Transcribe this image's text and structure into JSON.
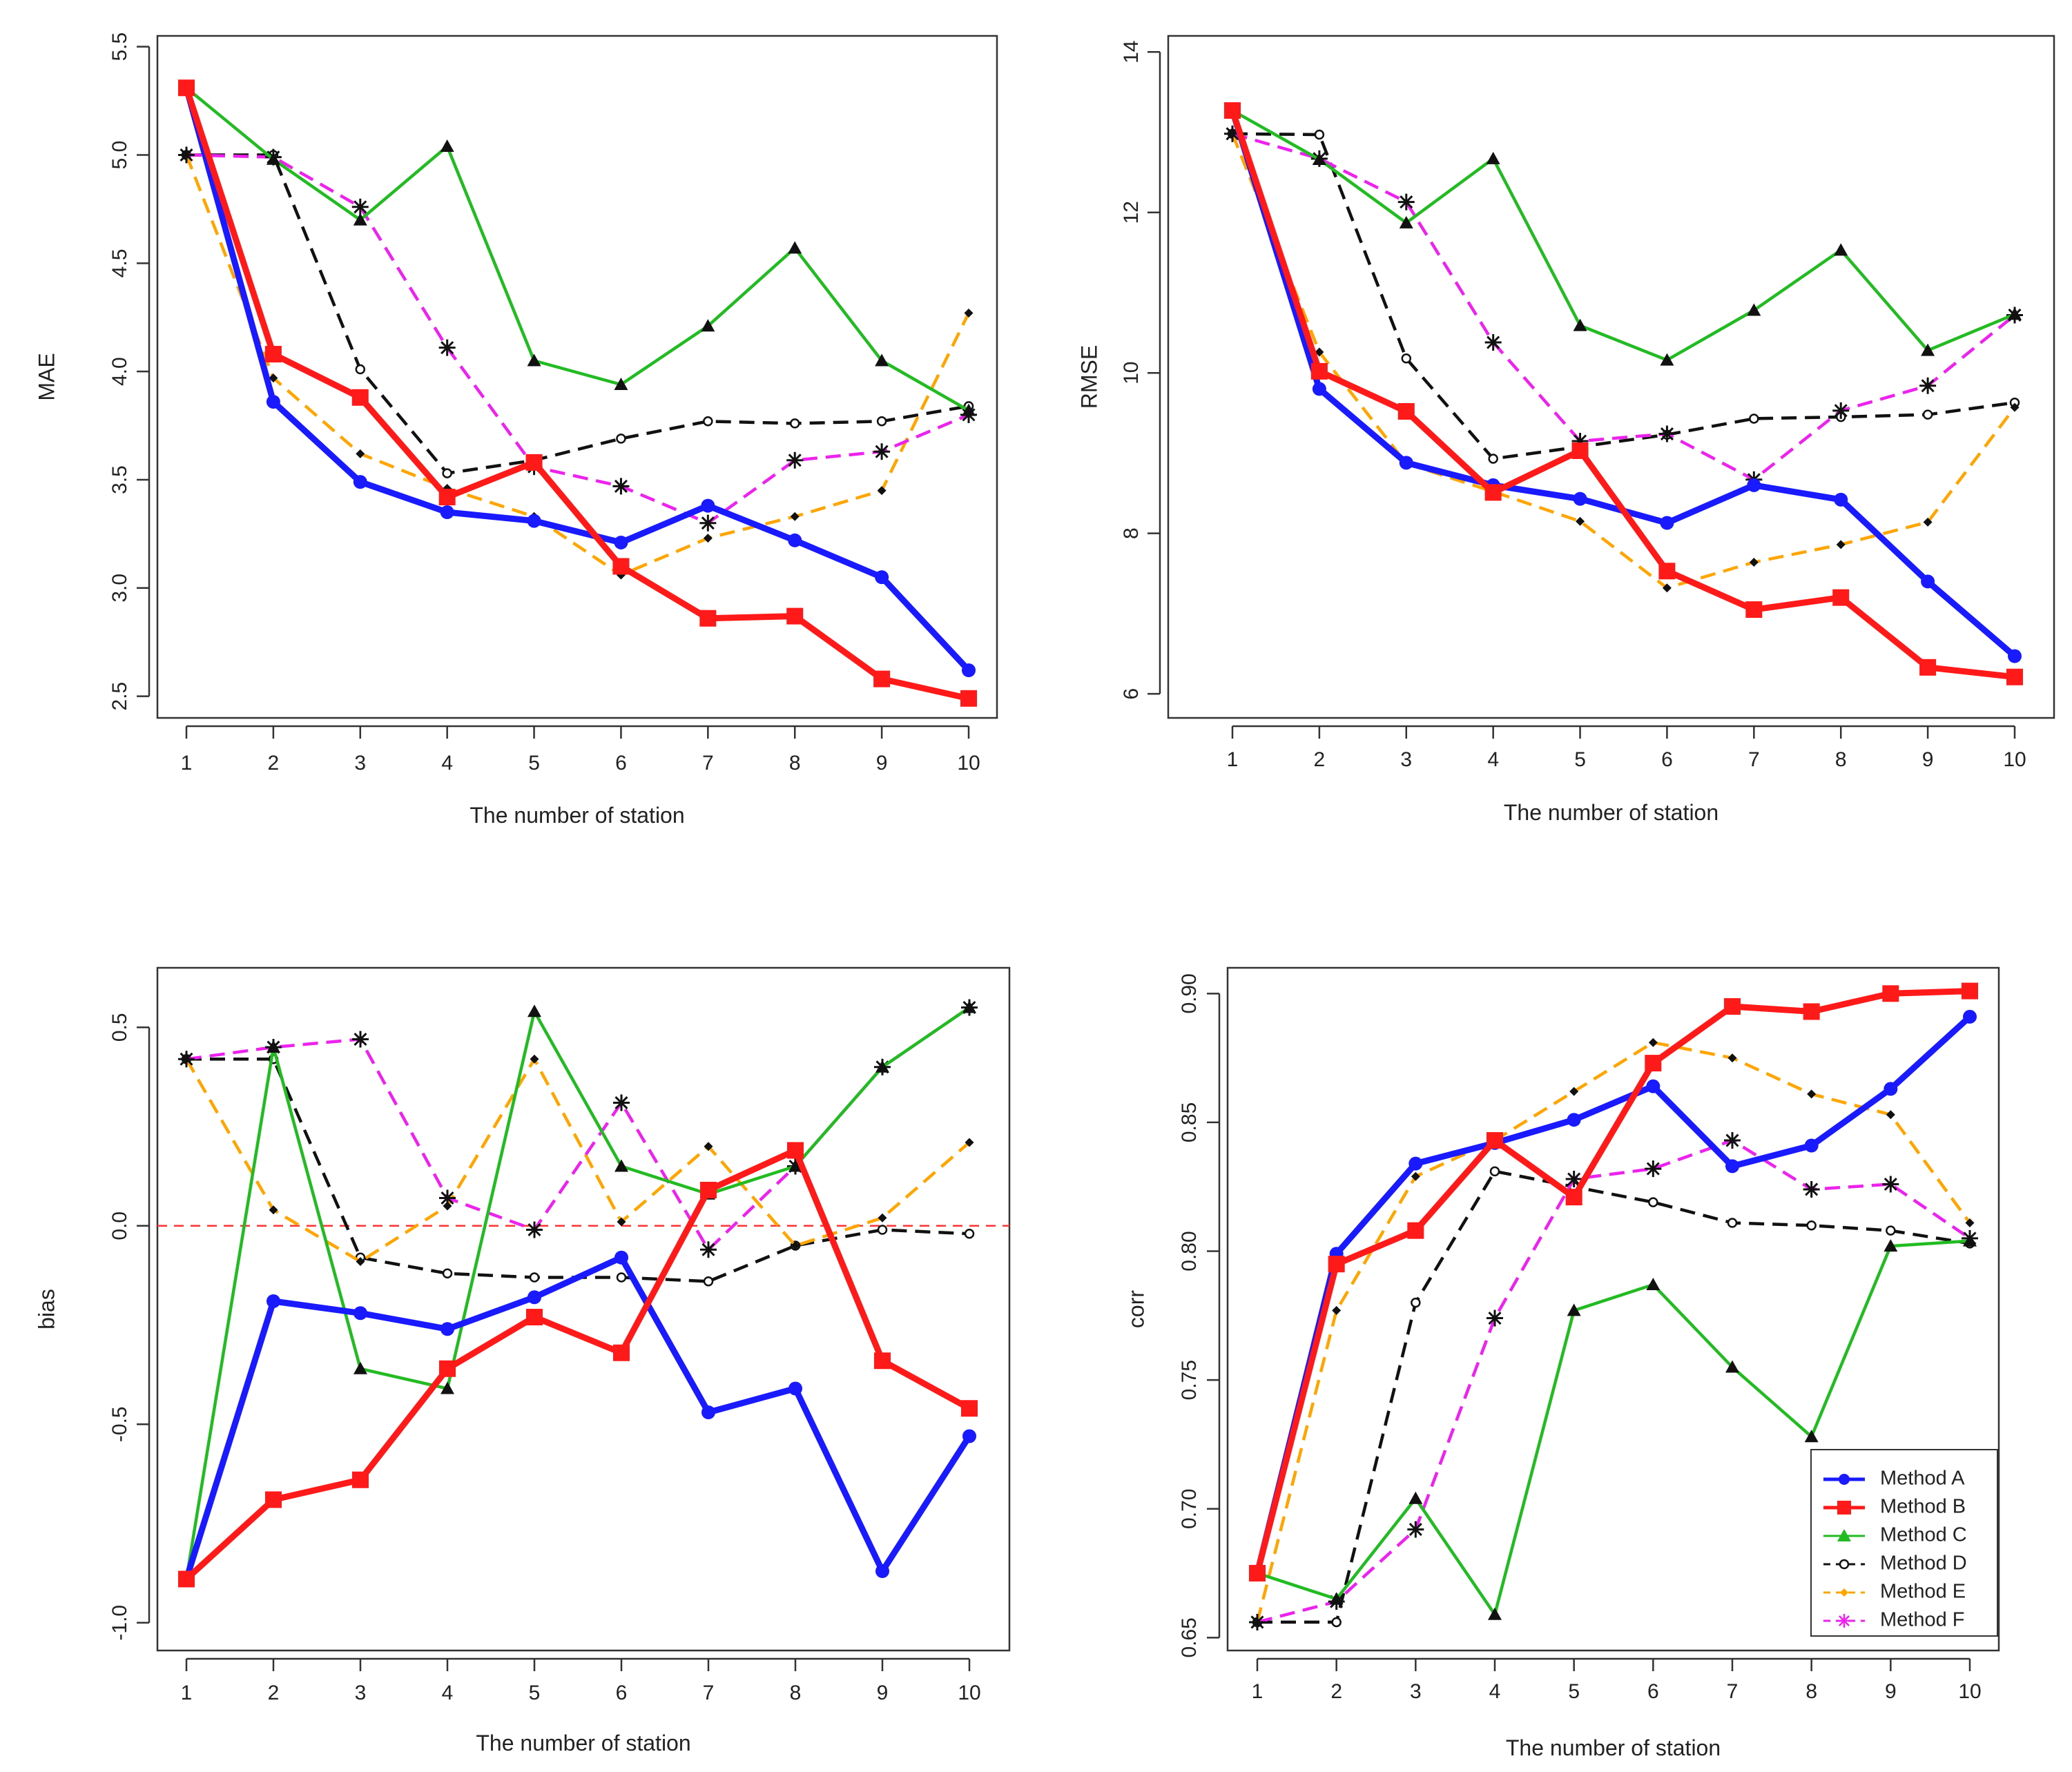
{
  "chart_data": [
    {
      "id": "mae",
      "type": "line",
      "title": "",
      "xlabel": "The number of station",
      "ylabel": "MAE",
      "x": [
        1,
        2,
        3,
        4,
        5,
        6,
        7,
        8,
        9,
        10
      ],
      "x_ticks": [
        "1",
        "2",
        "3",
        "4",
        "5",
        "6",
        "7",
        "8",
        "9",
        "10"
      ],
      "ylim": [
        2.4,
        5.55
      ],
      "y_ticks": [
        "2.5",
        "3.0",
        "3.5",
        "4.0",
        "4.5",
        "5.0",
        "5.5"
      ],
      "y_tick_values": [
        2.5,
        3.0,
        3.5,
        4.0,
        4.5,
        5.0,
        5.5
      ],
      "y_tick_rotated": true,
      "reference_line": null,
      "series": [
        {
          "name": "Method A",
          "values": [
            5.31,
            3.86,
            3.49,
            3.35,
            3.31,
            3.21,
            3.38,
            3.22,
            3.05,
            2.62
          ]
        },
        {
          "name": "Method B",
          "values": [
            5.31,
            4.08,
            3.88,
            3.42,
            3.58,
            3.1,
            2.86,
            2.87,
            2.58,
            2.49
          ]
        },
        {
          "name": "Method C",
          "values": [
            5.31,
            4.98,
            4.7,
            5.04,
            4.05,
            3.94,
            4.21,
            4.57,
            4.05,
            3.82
          ]
        },
        {
          "name": "Method D",
          "values": [
            5.0,
            5.0,
            4.01,
            3.53,
            3.59,
            3.69,
            3.77,
            3.76,
            3.77,
            3.84
          ]
        },
        {
          "name": "Method E",
          "values": [
            5.0,
            3.97,
            3.62,
            3.46,
            3.33,
            3.06,
            3.23,
            3.33,
            3.45,
            4.27
          ]
        },
        {
          "name": "Method F",
          "values": [
            5.0,
            4.99,
            4.76,
            4.11,
            3.56,
            3.47,
            3.3,
            3.59,
            3.63,
            3.8
          ]
        }
      ]
    },
    {
      "id": "rmse",
      "type": "line",
      "title": "",
      "xlabel": "The number of station",
      "ylabel": "RMSE",
      "x": [
        1,
        2,
        3,
        4,
        5,
        6,
        7,
        8,
        9,
        10
      ],
      "x_ticks": [
        "1",
        "2",
        "3",
        "4",
        "5",
        "6",
        "7",
        "8",
        "9",
        "10"
      ],
      "ylim": [
        5.7,
        14.2
      ],
      "y_ticks": [
        "6",
        "8",
        "10",
        "12",
        "14"
      ],
      "y_tick_values": [
        6,
        8,
        10,
        12,
        14
      ],
      "y_tick_rotated": true,
      "reference_line": null,
      "series": [
        {
          "name": "Method A",
          "values": [
            13.27,
            9.8,
            8.88,
            8.6,
            8.43,
            8.13,
            8.6,
            8.42,
            7.4,
            6.47
          ]
        },
        {
          "name": "Method B",
          "values": [
            13.27,
            10.02,
            9.52,
            8.51,
            9.03,
            7.53,
            7.05,
            7.2,
            6.33,
            6.21
          ]
        },
        {
          "name": "Method C",
          "values": [
            13.27,
            12.66,
            11.87,
            12.67,
            10.59,
            10.16,
            10.78,
            11.53,
            10.28,
            10.73
          ]
        },
        {
          "name": "Method D",
          "values": [
            12.98,
            12.97,
            10.18,
            8.93,
            9.08,
            9.23,
            9.43,
            9.45,
            9.48,
            9.63
          ]
        },
        {
          "name": "Method E",
          "values": [
            12.98,
            10.26,
            8.87,
            8.52,
            8.15,
            7.32,
            7.64,
            7.86,
            8.14,
            9.57
          ]
        },
        {
          "name": "Method F",
          "values": [
            12.98,
            12.67,
            12.13,
            10.38,
            9.15,
            9.24,
            8.67,
            9.53,
            9.84,
            10.72
          ]
        }
      ]
    },
    {
      "id": "bias",
      "type": "line",
      "title": "",
      "xlabel": "The number of station",
      "ylabel": "bias",
      "x": [
        1,
        2,
        3,
        4,
        5,
        6,
        7,
        8,
        9,
        10
      ],
      "x_ticks": [
        "1",
        "2",
        "3",
        "4",
        "5",
        "6",
        "7",
        "8",
        "9",
        "10"
      ],
      "ylim": [
        -1.07,
        0.65
      ],
      "y_ticks": [
        "-1.0",
        "-0.5",
        "0.0",
        "0.5"
      ],
      "y_tick_values": [
        -1.0,
        -0.5,
        0.0,
        0.5
      ],
      "y_tick_rotated": true,
      "reference_line": {
        "y": 0.0,
        "color": "#ff3333",
        "style": "dashed"
      },
      "series": [
        {
          "name": "Method A",
          "values": [
            -0.89,
            -0.19,
            -0.22,
            -0.26,
            -0.18,
            -0.08,
            -0.47,
            -0.41,
            -0.87,
            -0.53
          ]
        },
        {
          "name": "Method B",
          "values": [
            -0.89,
            -0.69,
            -0.64,
            -0.36,
            -0.23,
            -0.32,
            0.09,
            0.19,
            -0.34,
            -0.46
          ]
        },
        {
          "name": "Method C",
          "values": [
            -0.89,
            0.45,
            -0.36,
            -0.41,
            0.54,
            0.15,
            0.08,
            0.15,
            0.4,
            0.55
          ]
        },
        {
          "name": "Method D",
          "values": [
            0.42,
            0.42,
            -0.08,
            -0.12,
            -0.13,
            -0.13,
            -0.14,
            -0.05,
            -0.01,
            -0.02
          ]
        },
        {
          "name": "Method E",
          "values": [
            0.42,
            0.04,
            -0.09,
            0.05,
            0.42,
            0.01,
            0.2,
            -0.05,
            0.02,
            0.21
          ]
        },
        {
          "name": "Method F",
          "values": [
            0.42,
            0.45,
            0.47,
            0.07,
            -0.01,
            0.31,
            -0.06,
            0.15,
            0.4,
            0.55
          ]
        }
      ]
    },
    {
      "id": "corr",
      "type": "line",
      "title": "",
      "xlabel": "The number of station",
      "ylabel": "corr",
      "x": [
        1,
        2,
        3,
        4,
        5,
        6,
        7,
        8,
        9,
        10
      ],
      "x_ticks": [
        "1",
        "2",
        "3",
        "4",
        "5",
        "6",
        "7",
        "8",
        "9",
        "10"
      ],
      "ylim": [
        0.645,
        0.91
      ],
      "y_ticks": [
        "0.65",
        "0.70",
        "0.75",
        "0.80",
        "0.85",
        "0.90"
      ],
      "y_tick_values": [
        0.65,
        0.7,
        0.75,
        0.8,
        0.85,
        0.9
      ],
      "y_tick_rotated": true,
      "reference_line": null,
      "legend": {
        "position": "bottom-right"
      },
      "series": [
        {
          "name": "Method A",
          "values": [
            0.675,
            0.799,
            0.834,
            0.842,
            0.851,
            0.864,
            0.833,
            0.841,
            0.863,
            0.891
          ]
        },
        {
          "name": "Method B",
          "values": [
            0.675,
            0.795,
            0.808,
            0.843,
            0.821,
            0.873,
            0.895,
            0.893,
            0.9,
            0.901
          ]
        },
        {
          "name": "Method C",
          "values": [
            0.675,
            0.665,
            0.704,
            0.659,
            0.777,
            0.787,
            0.755,
            0.728,
            0.802,
            0.804
          ]
        },
        {
          "name": "Method D",
          "values": [
            0.656,
            0.656,
            0.78,
            0.831,
            0.825,
            0.819,
            0.811,
            0.81,
            0.808,
            0.803
          ]
        },
        {
          "name": "Method E",
          "values": [
            0.656,
            0.777,
            0.829,
            0.843,
            0.862,
            0.881,
            0.875,
            0.861,
            0.853,
            0.811
          ]
        },
        {
          "name": "Method F",
          "values": [
            0.656,
            0.664,
            0.692,
            0.774,
            0.828,
            0.832,
            0.843,
            0.824,
            0.826,
            0.805
          ]
        }
      ]
    }
  ],
  "styles": {
    "Method A": {
      "color": "#1a1aff",
      "marker": "dot-icon",
      "dash": "solid",
      "weight": "bold"
    },
    "Method B": {
      "color": "#ff1a1a",
      "marker": "square-icon",
      "dash": "solid",
      "weight": "bold"
    },
    "Method C": {
      "color": "#22bb22",
      "marker": "triangle-icon",
      "dash": "solid",
      "weight": "normal"
    },
    "Method D": {
      "color": "#111111",
      "marker": "open-circle-icon",
      "dash": "dashed",
      "weight": "normal"
    },
    "Method E": {
      "color": "#ffa500",
      "marker": "small-diamond-icon",
      "dash": "dashed",
      "weight": "normal"
    },
    "Method F": {
      "color": "#ee22ee",
      "marker": "asterisk-icon",
      "dash": "dashed",
      "weight": "normal"
    }
  },
  "marker_overrides": {
    "Method C": "dark-triangle",
    "Method E": "dark-diamond",
    "Method F": "dark-asterisk"
  }
}
